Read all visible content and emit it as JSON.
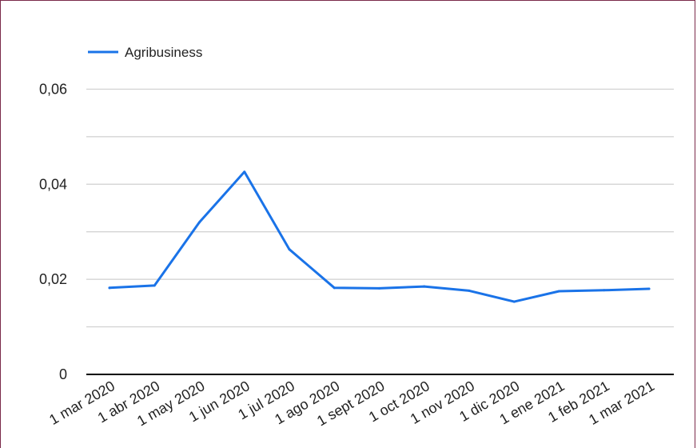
{
  "chart_data": {
    "type": "line",
    "categories": [
      "1 mar 2020",
      "1 abr 2020",
      "1 may 2020",
      "1 jun 2020",
      "1 jul 2020",
      "1 ago 2020",
      "1 sept 2020",
      "1 oct 2020",
      "1 nov 2020",
      "1 dic 2020",
      "1 ene 2021",
      "1 feb 2021",
      "1 mar 2021"
    ],
    "series": [
      {
        "name": "Agribusiness",
        "color": "#1a73e8",
        "values": [
          0.0182,
          0.0187,
          0.032,
          0.0426,
          0.0263,
          0.0182,
          0.0181,
          0.0185,
          0.0176,
          0.0153,
          0.0175,
          0.0177,
          0.018
        ]
      }
    ],
    "y_ticks": [
      "0",
      "0,02",
      "0,04",
      "0,06"
    ],
    "y_tick_values": [
      0,
      0.02,
      0.04,
      0.06
    ],
    "ylim": [
      0,
      0.07
    ],
    "grid": true,
    "minor_grid": true,
    "legend_position": "top-left",
    "title": "",
    "xlabel": "",
    "ylabel": ""
  }
}
